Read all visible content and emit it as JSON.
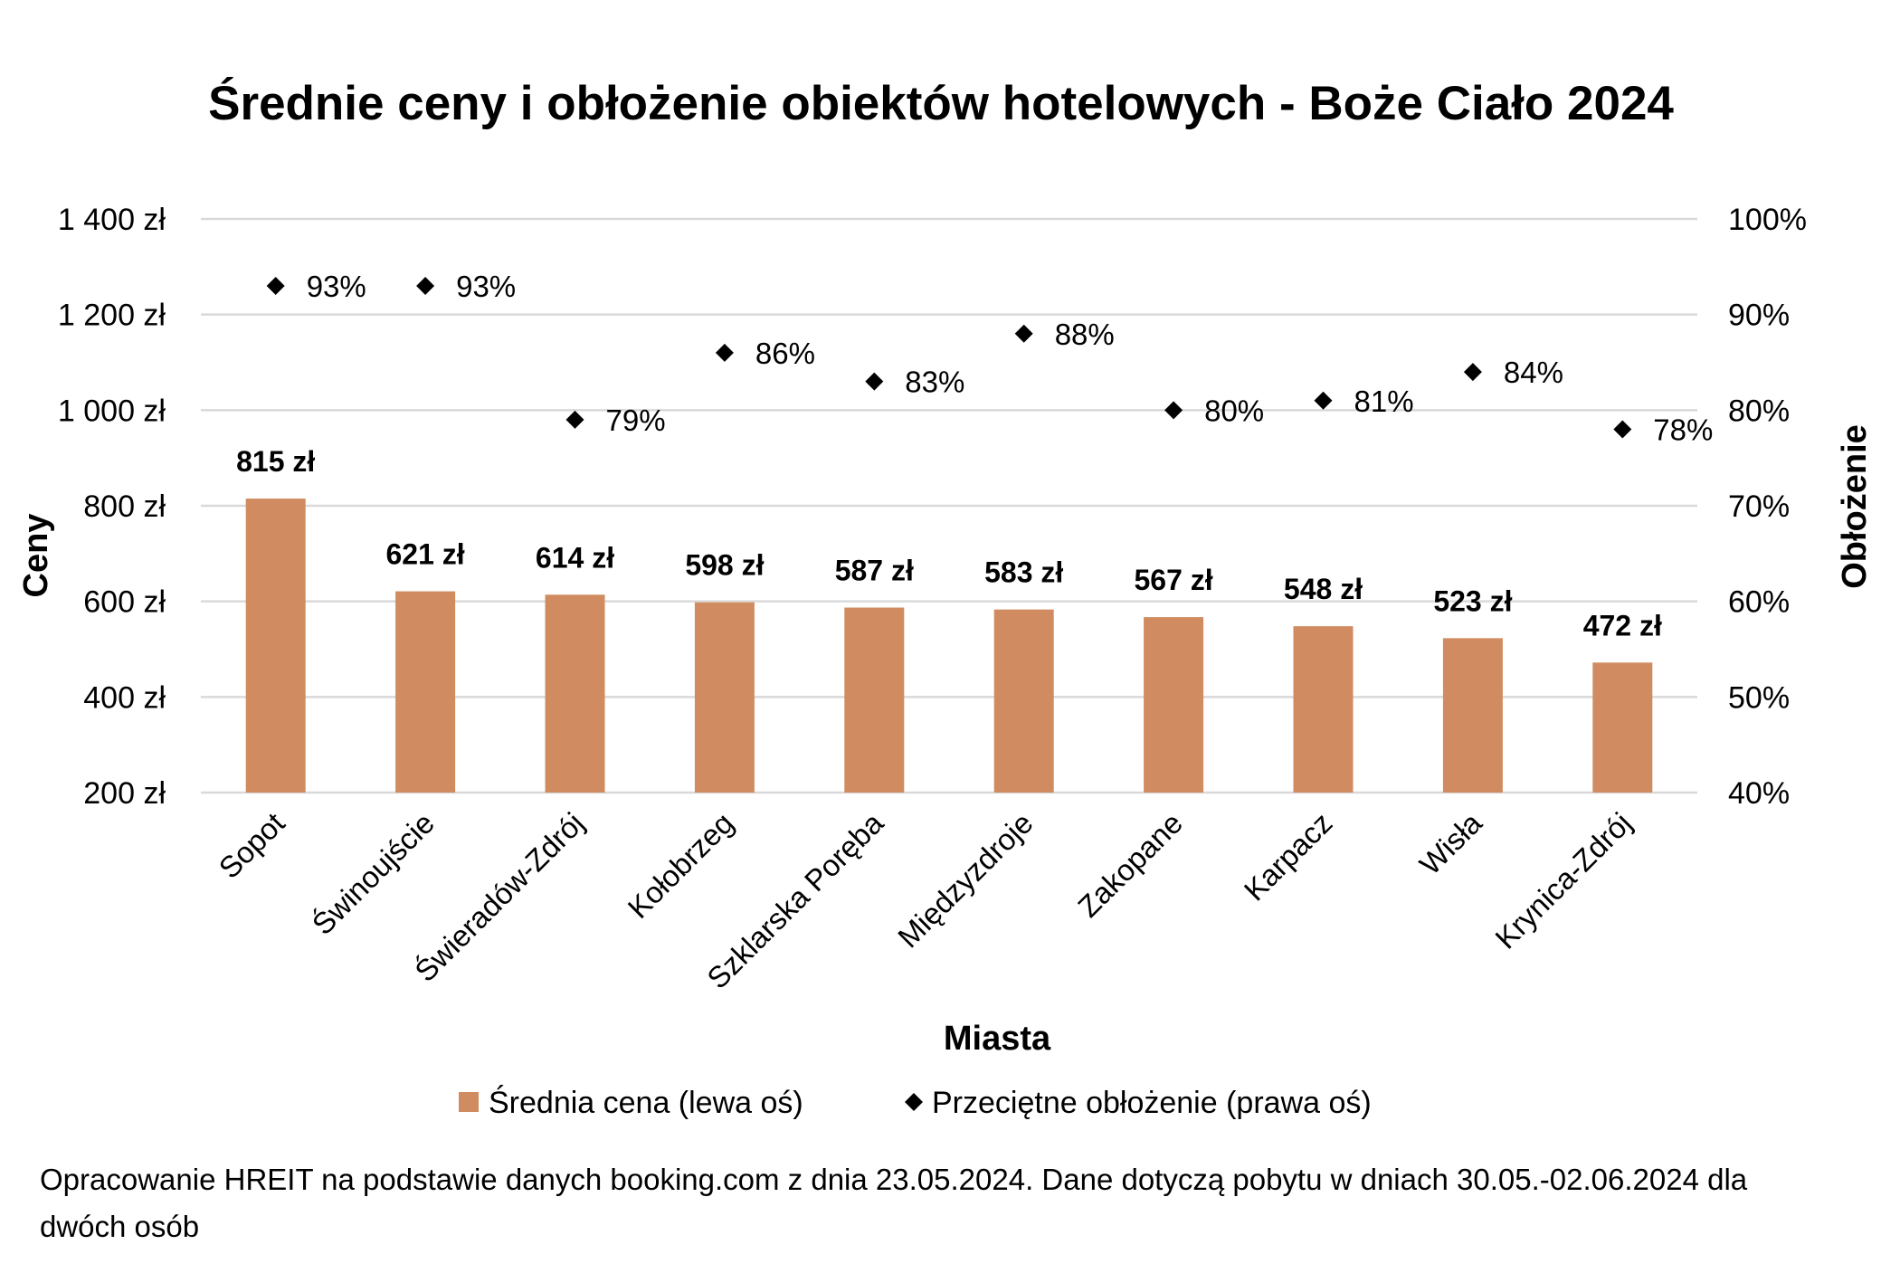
{
  "chart_data": {
    "type": "bar",
    "title": "Średnie ceny i obłożenie obiektów hotelowych - Boże Ciało 2024",
    "xlabel": "Miasta",
    "ylabel": "Ceny",
    "y2label": "Obłożenie",
    "categories": [
      "Sopot",
      "Świnoujście",
      "Świeradów-Zdrój",
      "Kołobrzeg",
      "Szklarska Poręba",
      "Międzyzdroje",
      "Zakopane",
      "Karpacz",
      "Wisła",
      "Krynica-Zdrój"
    ],
    "series": [
      {
        "name": "Średnia cena (lewa oś)",
        "type": "bar",
        "axis": "left",
        "color": "#D08C60",
        "values": [
          815,
          621,
          614,
          598,
          587,
          583,
          567,
          548,
          523,
          472
        ],
        "labels": [
          "815 zł",
          "621 zł",
          "614 zł",
          "598 zł",
          "587 zł",
          "583 zł",
          "567 zł",
          "548 zł",
          "523 zł",
          "472 zł"
        ]
      },
      {
        "name": "Przeciętne obłożenie (prawa oś)",
        "type": "scatter",
        "axis": "right",
        "color": "#000000",
        "values": [
          0.93,
          0.93,
          0.79,
          0.86,
          0.83,
          0.88,
          0.8,
          0.81,
          0.84,
          0.78
        ],
        "labels": [
          "93%",
          "93%",
          "79%",
          "86%",
          "83%",
          "88%",
          "80%",
          "81%",
          "84%",
          "78%"
        ]
      }
    ],
    "ylim": [
      200,
      1400
    ],
    "y_ticks": [
      200,
      400,
      600,
      800,
      1000,
      1200,
      1400
    ],
    "y_tick_labels": [
      "200 zł",
      "400 zł",
      "600 zł",
      "800 zł",
      "1 000 zł",
      "1 200 zł",
      "1 400 zł"
    ],
    "y2lim": [
      0.4,
      1.0
    ],
    "y2_ticks": [
      0.4,
      0.5,
      0.6,
      0.7,
      0.8,
      0.9,
      1.0
    ],
    "y2_tick_labels": [
      "40%",
      "50%",
      "60%",
      "70%",
      "80%",
      "90%",
      "100%"
    ],
    "grid": true,
    "legend_position": "bottom",
    "gridline_color": "#D9D9D9"
  },
  "footnote": "Opracowanie HREIT na podstawie danych booking.com z dnia 23.05.2024. Dane dotyczą pobytu w dniach 30.05.-02.06.2024 dla dwóch osób"
}
